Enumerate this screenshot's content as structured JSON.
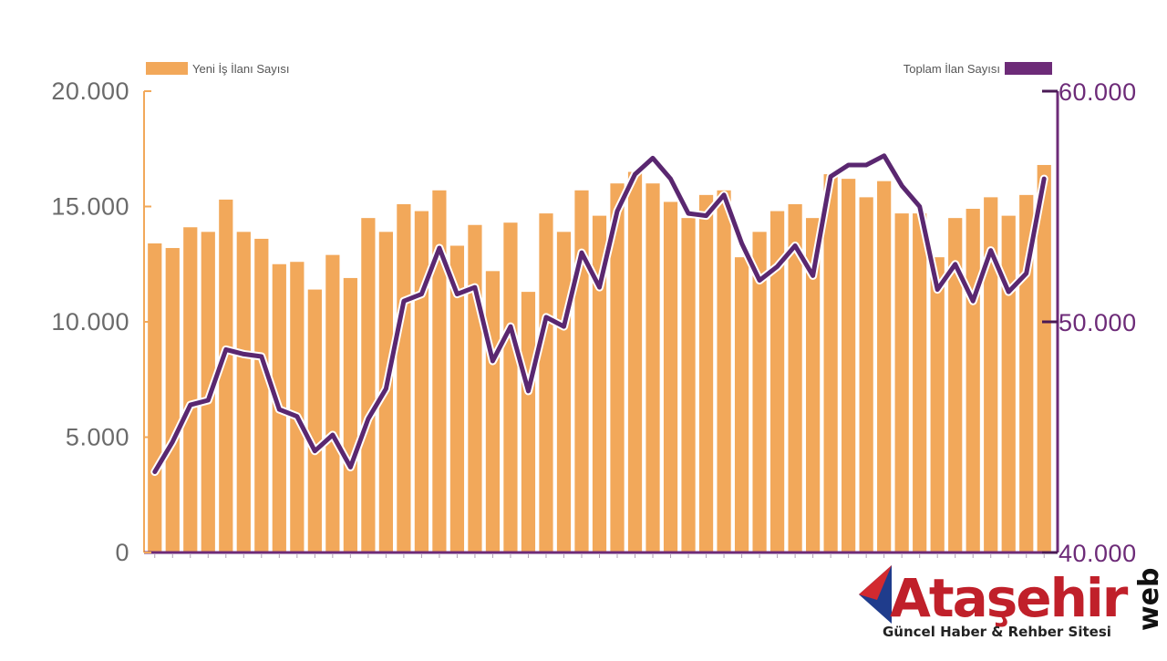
{
  "chart_data": {
    "type": "bar",
    "title": "",
    "xlabel": "",
    "ylabel": "",
    "ylim": [
      0,
      20000
    ],
    "y2lim": [
      40000,
      60000
    ],
    "left_ticks": [
      "0",
      "5.000",
      "10.000",
      "15.000",
      "20.000"
    ],
    "right_ticks": [
      "40.000",
      "50.000",
      "60.000"
    ],
    "legend_position": "top",
    "grid": false,
    "colors": {
      "bar": "#f2a85a",
      "line": "#5a2770",
      "line_outline": "#ffffff",
      "right_axis": "#6d2b78",
      "left_axis": "#f2a85a"
    },
    "series": [
      {
        "name": "Yeni İş İlanı Sayısı",
        "type": "bar",
        "axis": "left",
        "values": [
          13400,
          13200,
          14100,
          13900,
          15300,
          13900,
          13600,
          12500,
          12600,
          11400,
          12900,
          11900,
          14500,
          13900,
          15100,
          14800,
          15700,
          13300,
          14200,
          12200,
          14300,
          11300,
          14700,
          13900,
          15700,
          14600,
          16000,
          16500,
          16000,
          15200,
          14500,
          15500,
          15700,
          12800,
          13900,
          14800,
          15100,
          14500,
          16400,
          16200,
          15400,
          16100,
          14700,
          14700,
          12800,
          14500,
          14900,
          15400,
          14600,
          15500,
          16800
        ]
      },
      {
        "name": "Toplam İlan Sayısı",
        "type": "line",
        "axis": "right",
        "values": [
          43500,
          44800,
          46400,
          46600,
          48800,
          48600,
          48500,
          46200,
          45900,
          44400,
          45100,
          43700,
          45800,
          47100,
          50900,
          51200,
          53200,
          51200,
          51500,
          48300,
          49800,
          47000,
          50200,
          49800,
          53000,
          51500,
          54800,
          56400,
          57100,
          56200,
          54700,
          54600,
          55500,
          53400,
          51800,
          52400,
          53300,
          52000,
          56300,
          56800,
          56800,
          57200,
          55900,
          55000,
          51400,
          52500,
          50900,
          53100,
          51300,
          52100,
          56200
        ]
      }
    ]
  },
  "branding": {
    "logo_text": "Ataşehir",
    "logo_suffix": "web",
    "logo_tagline": "Güncel Haber & Rehber Sitesi"
  }
}
